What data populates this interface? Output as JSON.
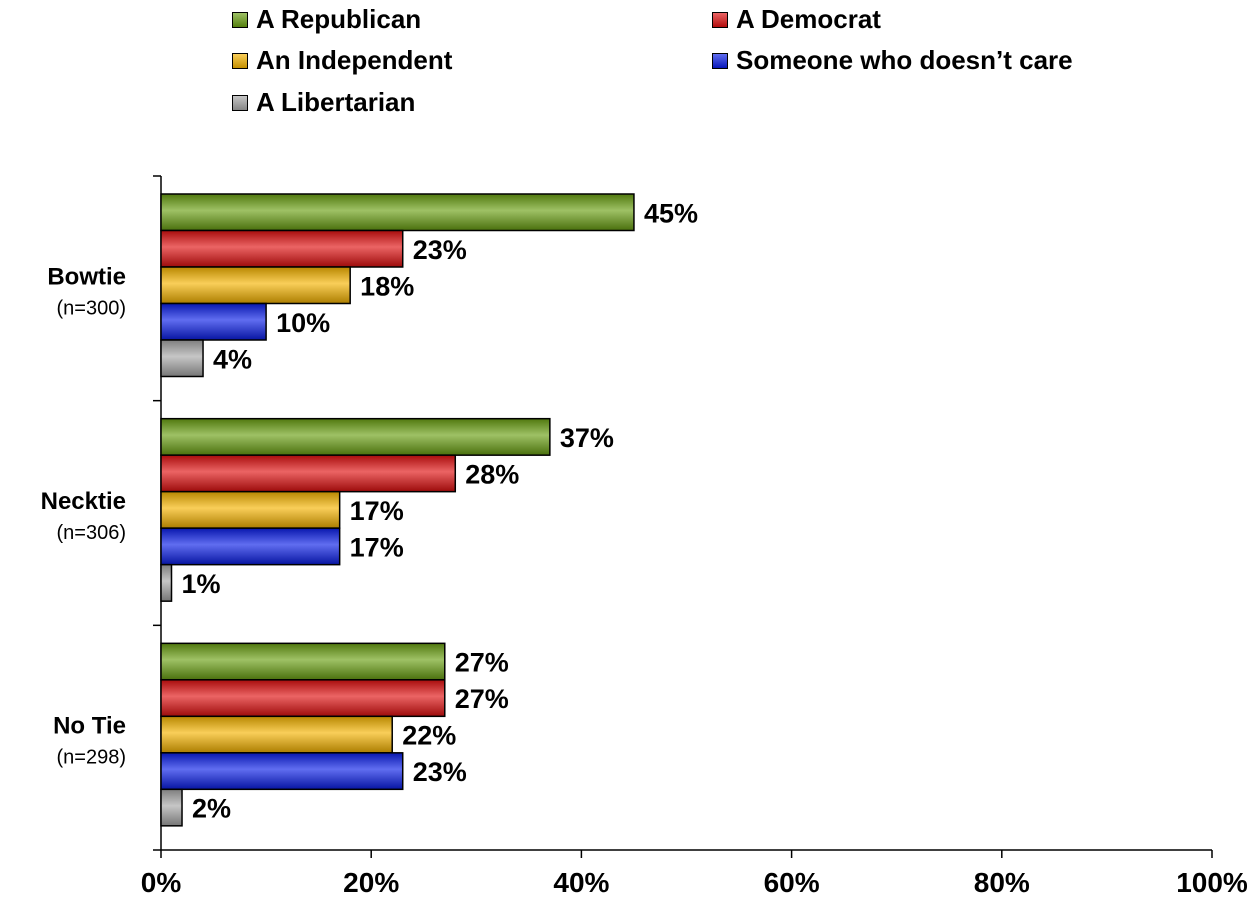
{
  "chart_data": {
    "type": "bar",
    "orientation": "horizontal",
    "categories": [
      "Bowtie",
      "Necktie",
      "No Tie"
    ],
    "category_notes": [
      "(n=300)",
      "(n=306)",
      "(n=298)"
    ],
    "series": [
      {
        "name": "A Republican",
        "color": "#6aa012",
        "values": [
          45,
          37,
          27
        ]
      },
      {
        "name": "A Democrat",
        "color": "#e01010",
        "values": [
          23,
          28,
          27
        ]
      },
      {
        "name": "An Independent",
        "color": "#f5b400",
        "values": [
          18,
          17,
          22
        ]
      },
      {
        "name": "Someone who doesn’t care",
        "color": "#0a1ee8",
        "values": [
          10,
          17,
          23
        ]
      },
      {
        "name": "A Libertarian",
        "color": "#a8a8a8",
        "values": [
          4,
          1,
          2
        ]
      }
    ],
    "value_labels": [
      [
        "45%",
        "37%",
        "27%"
      ],
      [
        "23%",
        "28%",
        "27%"
      ],
      [
        "18%",
        "17%",
        "22%"
      ],
      [
        "10%",
        "17%",
        "23%"
      ],
      [
        "4%",
        "1%",
        "2%"
      ]
    ],
    "xlim": [
      0,
      100
    ],
    "x_ticks": [
      0,
      20,
      40,
      60,
      80,
      100
    ],
    "x_tick_labels": [
      "0%",
      "20%",
      "40%",
      "60%",
      "80%",
      "100%"
    ],
    "legend_position": "top",
    "grid": false
  }
}
